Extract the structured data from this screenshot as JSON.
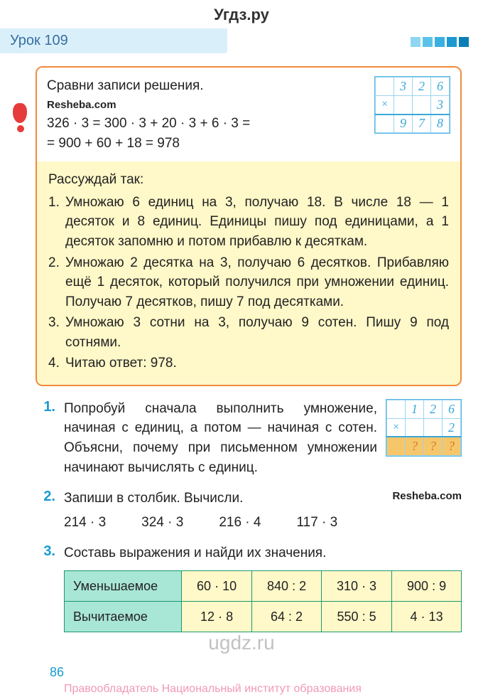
{
  "watermark_top": "Угдз.ру",
  "watermark_bottom": "ugdz.ru",
  "lesson": {
    "label": "Урок 109"
  },
  "brand": "Resheba.com",
  "solution": {
    "title": "Сравни записи решения.",
    "line1": "326 · 3 = 300 · 3 + 20 · 3 + 6 · 3 =",
    "line2": "= 900 + 60 + 18 = 978",
    "grid": {
      "rows": [
        [
          "",
          "3",
          "2",
          "6"
        ],
        [
          "×",
          "",
          "",
          "3"
        ],
        [
          "",
          "9",
          "7",
          "8"
        ]
      ]
    },
    "reason_lead": "Рассуждай так:",
    "reason": [
      "Умножаю 6 единиц на 3, получаю 18. В числе 18 — 1 десяток и 8 единиц. Единицы пишу под единицами, а 1 десяток запомню и потом прибавлю к десяткам.",
      "Умножаю 2 десятка на 3, получаю 6 десятков. Прибавляю ещё 1 десяток, который получился при умножении единиц. Получаю 7 десятков, пишу 7 под десятками.",
      "Умножаю 3 сотни на 3, получаю 9 сотен. Пишу 9 под сотнями.",
      "Читаю ответ: 978."
    ]
  },
  "ex1": {
    "num": "1.",
    "text": "Попробуй сначала выполнить умножение, начиная с единиц, а потом — начиная с сотен. Объясни, почему при письменном умножении начинают вычислять с единиц.",
    "grid": {
      "rows": [
        [
          "",
          "1",
          "2",
          "6"
        ],
        [
          "×",
          "",
          "",
          "2"
        ],
        [
          "",
          "?",
          "?",
          "?"
        ]
      ]
    }
  },
  "ex2": {
    "num": "2.",
    "text": "Запиши в столбик. Вычисли.",
    "items": [
      "214 · 3",
      "324 · 3",
      "216 · 4",
      "117 · 3"
    ]
  },
  "ex3": {
    "num": "3.",
    "text": "Составь выражения и найди их значения.",
    "table": {
      "row_labels": [
        "Уменьшаемое",
        "Вычитаемое"
      ],
      "cells": [
        [
          "60 · 10",
          "840 : 2",
          "310 · 3",
          "900 : 9"
        ],
        [
          "12 · 8",
          "64 : 2",
          "550 : 5",
          "4 · 13"
        ]
      ]
    }
  },
  "page_number": "86",
  "footer": "Правообладатель Национальный институт образования"
}
